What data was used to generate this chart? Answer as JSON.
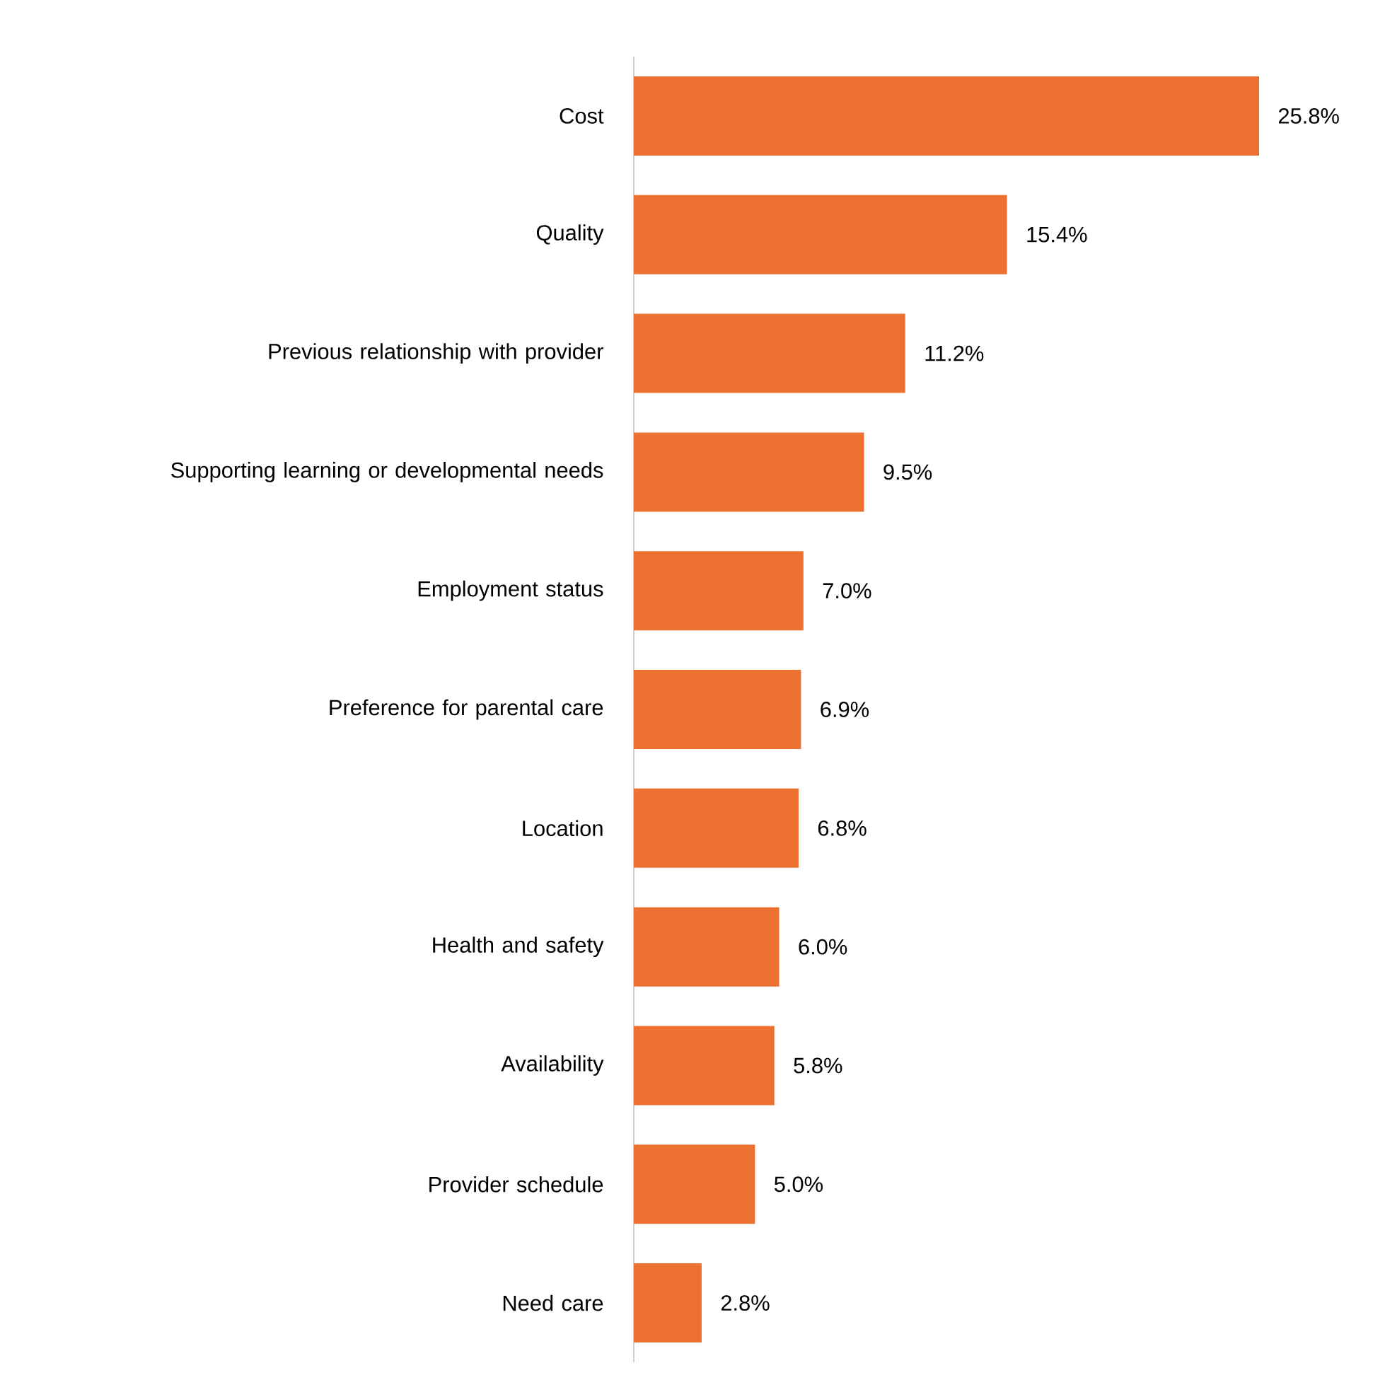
{
  "chart_data": {
    "type": "bar",
    "orientation": "horizontal",
    "categories": [
      "Cost",
      "Quality",
      "Previous relationship with provider",
      "Supporting learning or developmental needs",
      "Employment status",
      "Preference for parental care",
      "Location",
      "Health and safety",
      "Availability",
      "Provider schedule",
      "Need care"
    ],
    "values": [
      25.8,
      15.4,
      11.2,
      9.5,
      7.0,
      6.9,
      6.8,
      6.0,
      5.8,
      5.0,
      2.8
    ],
    "value_labels": [
      "25.8%",
      "15.4%",
      "11.2%",
      "9.5%",
      "7.0%",
      "6.9%",
      "6.8%",
      "6.0%",
      "5.8%",
      "5.0%",
      "2.8%"
    ],
    "color": "#ed7232"
  }
}
